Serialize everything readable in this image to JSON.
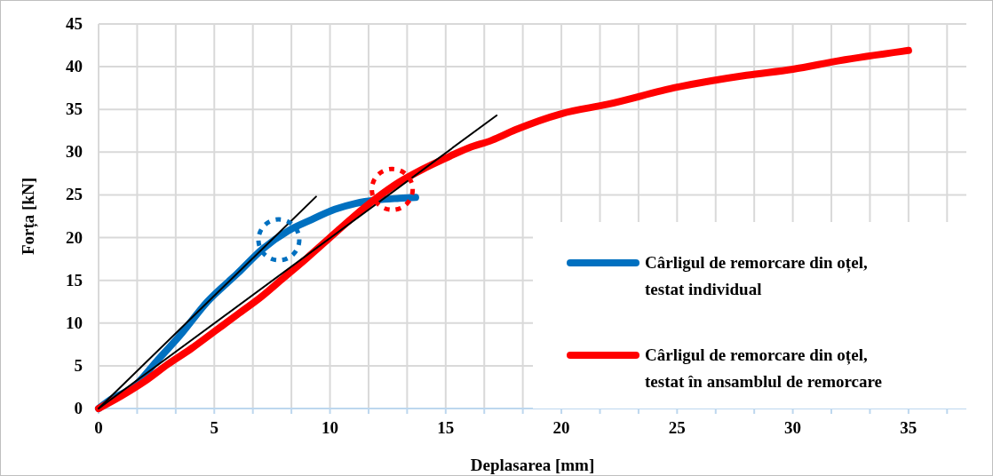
{
  "chart_data": {
    "type": "line",
    "xlabel": "Deplasarea [mm]",
    "ylabel": "Forța [kN]",
    "xlim": [
      0,
      37.5
    ],
    "ylim": [
      0,
      45
    ],
    "xticks": [
      0,
      {
        "value": 1.667,
        "label": null
      },
      {
        "value": 3.333,
        "label": null
      },
      5,
      {
        "value": 6.667,
        "label": null
      },
      {
        "value": 8.333,
        "label": null
      },
      10,
      {
        "value": 11.667,
        "label": null
      },
      {
        "value": 13.333,
        "label": null
      },
      15,
      {
        "value": 16.667,
        "label": null
      },
      {
        "value": 18.333,
        "label": null
      },
      20,
      {
        "value": 21.667,
        "label": null
      },
      {
        "value": 23.333,
        "label": null
      },
      25,
      {
        "value": 26.667,
        "label": null
      },
      {
        "value": 28.333,
        "label": null
      },
      30,
      {
        "value": 31.667,
        "label": null
      },
      {
        "value": 33.333,
        "label": null
      },
      35,
      {
        "value": 36.667,
        "label": null
      }
    ],
    "yticks": [
      0,
      5,
      10,
      15,
      20,
      25,
      30,
      35,
      40,
      45
    ],
    "grid": true,
    "legend": "bottom right",
    "series": [
      {
        "name": "Cârligul de remorcare din oțel, testat individual",
        "color": "#0070c0",
        "x": [
          0,
          0.5,
          1.5,
          2.5,
          3.5,
          4.7,
          6,
          7.1,
          8.2,
          9.2,
          10.2,
          11.1,
          12,
          13,
          13.7
        ],
        "values": [
          0,
          1,
          2.5,
          5.5,
          8.5,
          12.5,
          15.8,
          18.7,
          20.8,
          22.1,
          23.3,
          24,
          24.4,
          24.6,
          24.7
        ]
      },
      {
        "name": "Cârligul de remorcare din oțel, testat în ansamblul de remorcare",
        "color": "#ff0000",
        "x": [
          0,
          1,
          2,
          3,
          4,
          5,
          6,
          7,
          8,
          9,
          10,
          11,
          12,
          13,
          14,
          15,
          16,
          17,
          18,
          20,
          22,
          25,
          28,
          30,
          32,
          35
        ],
        "values": [
          0,
          1.5,
          3.2,
          5.2,
          7,
          9,
          11,
          13,
          15.3,
          17.6,
          20,
          22.4,
          24.6,
          26.5,
          28,
          29.3,
          30.5,
          31.4,
          32.6,
          34.5,
          35.6,
          37.6,
          39,
          39.7,
          40.7,
          41.9
        ]
      },
      {
        "color": "#000000",
        "x": [
          0,
          9.4
        ],
        "values": [
          0,
          24.8
        ]
      },
      {
        "color": "#000000",
        "x": [
          0,
          17.2
        ],
        "values": [
          0,
          34.3
        ]
      }
    ]
  }
}
